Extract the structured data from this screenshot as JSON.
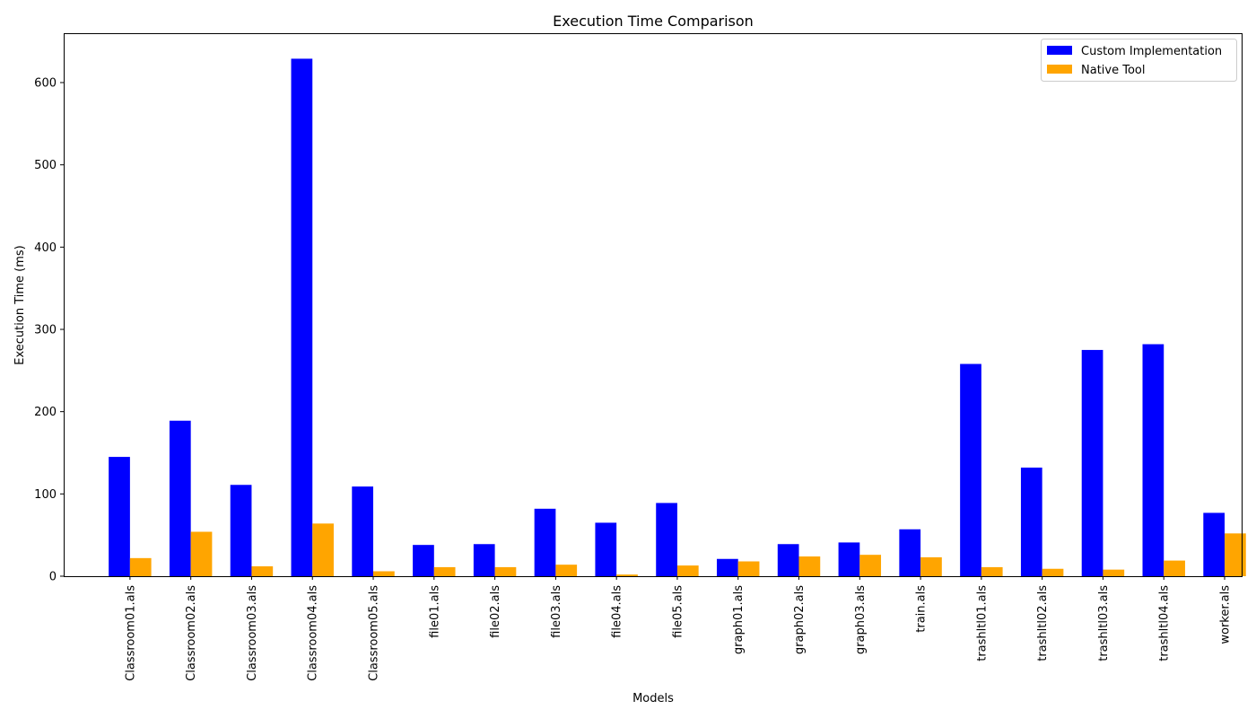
{
  "chart_data": {
    "type": "bar",
    "title": "Execution Time Comparison",
    "xlabel": "Models",
    "ylabel": "Execution Time (ms)",
    "ylim": [
      0,
      660
    ],
    "yticks": [
      0,
      100,
      200,
      300,
      400,
      500,
      600
    ],
    "grid": false,
    "legend": "top-right",
    "categories": [
      "Classroom01.als",
      "Classroom02.als",
      "Classroom03.als",
      "Classroom04.als",
      "Classroom05.als",
      "file01.als",
      "file02.als",
      "file03.als",
      "file04.als",
      "file05.als",
      "graph01.als",
      "graph02.als",
      "graph03.als",
      "train.als",
      "trashltl01.als",
      "trashltl02.als",
      "trashltl03.als",
      "trashltl04.als",
      "worker.als"
    ],
    "series": [
      {
        "name": "Custom Implementation",
        "color": "#0000ff",
        "values": [
          145,
          189,
          111,
          629,
          109,
          38,
          39,
          82,
          65,
          89,
          21,
          39,
          41,
          57,
          258,
          132,
          275,
          282,
          77
        ]
      },
      {
        "name": "Native Tool",
        "color": "#ffa500",
        "values": [
          22,
          54,
          12,
          64,
          6,
          11,
          11,
          14,
          2,
          13,
          18,
          24,
          26,
          23,
          11,
          9,
          8,
          19,
          52
        ]
      }
    ]
  }
}
